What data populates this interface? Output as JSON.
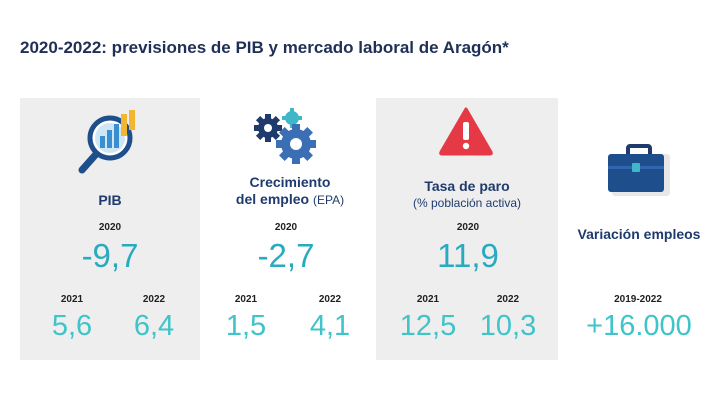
{
  "title": "2020-2022: previsiones de PIB y mercado laboral de Aragón*",
  "pib": {
    "icon": "magnifier-chart-icon",
    "heading": "PIB",
    "main_year": "2020",
    "main_value": "-9,7",
    "year_a": "2021",
    "value_a": "5,6",
    "year_b": "2022",
    "value_b": "6,4"
  },
  "empleo": {
    "icon": "gears-icon",
    "heading_line1": "Crecimiento",
    "heading_line2": "del empleo",
    "heading_suffix": "(EPA)",
    "main_year": "2020",
    "main_value": "-2,7",
    "year_a": "2021",
    "value_a": "1,5",
    "year_b": "2022",
    "value_b": "4,1"
  },
  "paro": {
    "icon": "warning-triangle-icon",
    "heading": "Tasa de paro",
    "subheading": "(% población activa)",
    "main_year": "2020",
    "main_value": "11,9",
    "year_a": "2021",
    "value_a": "12,5",
    "year_b": "2022",
    "value_b": "10,3"
  },
  "variacion": {
    "icon": "briefcase-icon",
    "heading": "Variación empleos",
    "year": "2019-2022",
    "value": "+16.000"
  },
  "colors": {
    "panel_bg": "#eeeeee",
    "title": "#1f2f56",
    "heading": "#1f3b6e",
    "value_main": "#2aaabf",
    "value_small": "#3ec4c9",
    "warning": "#e63946"
  }
}
